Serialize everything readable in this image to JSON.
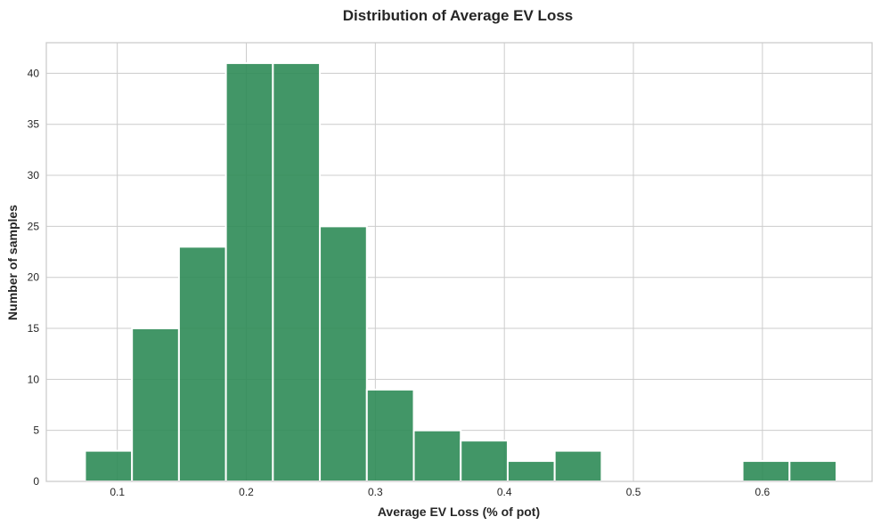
{
  "chart_data": {
    "type": "bar",
    "title": "Distribution of Average EV Loss",
    "xlabel": "Average EV Loss (% of pot)",
    "ylabel": "Number of samples",
    "xlim": [
      0.045,
      0.685
    ],
    "ylim": [
      0,
      43
    ],
    "x_ticks": [
      "0.1",
      "0.2",
      "0.3",
      "0.4",
      "0.5",
      "0.6"
    ],
    "y_ticks": [
      "0",
      "5",
      "10",
      "15",
      "20",
      "25",
      "30",
      "35",
      "40"
    ],
    "bin_width": 0.0364,
    "bins": [
      {
        "x_start": 0.075,
        "count": 3
      },
      {
        "x_start": 0.1114,
        "count": 15
      },
      {
        "x_start": 0.1478,
        "count": 23
      },
      {
        "x_start": 0.1842,
        "count": 41
      },
      {
        "x_start": 0.2206,
        "count": 41
      },
      {
        "x_start": 0.257,
        "count": 25
      },
      {
        "x_start": 0.2934,
        "count": 9
      },
      {
        "x_start": 0.3298,
        "count": 5
      },
      {
        "x_start": 0.3662,
        "count": 4
      },
      {
        "x_start": 0.4026,
        "count": 2
      },
      {
        "x_start": 0.439,
        "count": 3
      },
      {
        "x_start": 0.4754,
        "count": 0
      },
      {
        "x_start": 0.5118,
        "count": 0
      },
      {
        "x_start": 0.5482,
        "count": 0
      },
      {
        "x_start": 0.5846,
        "count": 2
      },
      {
        "x_start": 0.621,
        "count": 2
      }
    ],
    "grid": true,
    "bar_color": "#2e8b57"
  }
}
